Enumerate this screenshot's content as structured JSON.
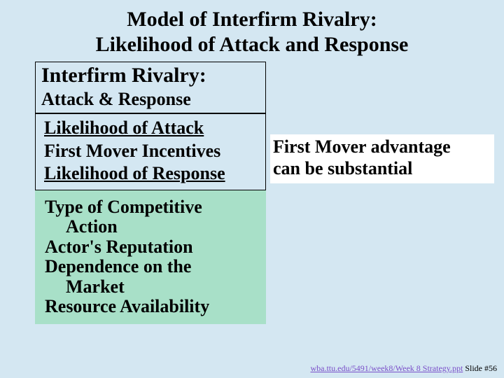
{
  "title_line1": "Model of Interfirm Rivalry:",
  "title_line2": "Likelihood of Attack and Response",
  "left": {
    "heading": "Interfirm Rivalry:",
    "subheading": "Attack & Response",
    "likelihood_attack": "Likelihood of Attack",
    "first_mover_incentives": "First Mover Incentives",
    "likelihood_response": "Likelihood of Response",
    "green_items": {
      "item1_l1": "Type of Competitive",
      "item1_l2": "Action",
      "item2": "Actor's Reputation",
      "item3_l1": "Dependence on the",
      "item3_l2": "Market",
      "item4": "Resource Availability"
    }
  },
  "right": {
    "line1": "First Mover advantage",
    "line2": "can be substantial"
  },
  "footer": {
    "link_text": "wba.ttu.edu/5491/week8/Week 8 Strategy.ppt",
    "slide_label": " Slide #56"
  },
  "colors": {
    "page_bg": "#d4e7f2",
    "green_bg": "#a8e0c8",
    "white_bg": "#ffffff",
    "link": "#7a4fc9",
    "text": "#000000"
  }
}
